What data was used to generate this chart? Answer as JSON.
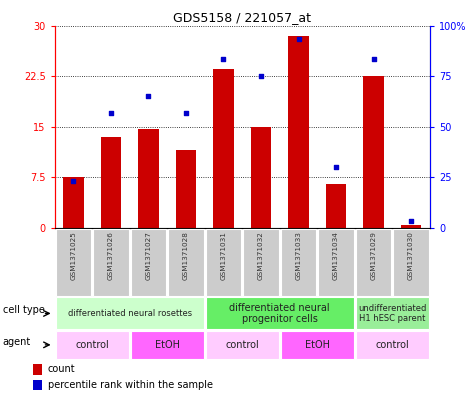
{
  "title": "GDS5158 / 221057_at",
  "samples": [
    "GSM1371025",
    "GSM1371026",
    "GSM1371027",
    "GSM1371028",
    "GSM1371031",
    "GSM1371032",
    "GSM1371033",
    "GSM1371034",
    "GSM1371029",
    "GSM1371030"
  ],
  "counts": [
    7.5,
    13.5,
    14.7,
    11.5,
    23.5,
    15.0,
    28.5,
    6.5,
    22.5,
    0.5
  ],
  "percentile_ranks": [
    7.0,
    17.0,
    19.5,
    17.0,
    25.0,
    22.5,
    28.0,
    9.0,
    25.0,
    1.0
  ],
  "bar_color": "#cc0000",
  "dot_color": "#0000cc",
  "ylim_left": [
    0,
    30
  ],
  "ylim_right": [
    0,
    100
  ],
  "yticks_left": [
    0,
    7.5,
    15,
    22.5,
    30
  ],
  "ytick_labels_left": [
    "0",
    "7.5",
    "15",
    "22.5",
    "30"
  ],
  "yticks_right": [
    0,
    25,
    50,
    75,
    100
  ],
  "ytick_labels_right": [
    "0",
    "25",
    "50",
    "75",
    "100%"
  ],
  "cell_type_groups": [
    {
      "label": "differentiated neural rosettes",
      "start": 0,
      "end": 4,
      "color": "#ccffcc",
      "fontsize": 6
    },
    {
      "label": "differentiated neural\nprogenitor cells",
      "start": 4,
      "end": 8,
      "color": "#66ee66",
      "fontsize": 7
    },
    {
      "label": "undifferentiated\nH1 hESC parent",
      "start": 8,
      "end": 10,
      "color": "#99ee99",
      "fontsize": 6
    }
  ],
  "agent_groups": [
    {
      "label": "control",
      "start": 0,
      "end": 2,
      "color": "#ffccff"
    },
    {
      "label": "EtOH",
      "start": 2,
      "end": 4,
      "color": "#ff66ff"
    },
    {
      "label": "control",
      "start": 4,
      "end": 6,
      "color": "#ffccff"
    },
    {
      "label": "EtOH",
      "start": 6,
      "end": 8,
      "color": "#ff66ff"
    },
    {
      "label": "control",
      "start": 8,
      "end": 10,
      "color": "#ffccff"
    }
  ],
  "cell_type_row_label": "cell type",
  "agent_row_label": "agent",
  "legend_count_label": "count",
  "legend_percentile_label": "percentile rank within the sample",
  "sample_bg_color": "#cccccc",
  "sample_text_color": "#333333",
  "bar_width": 0.55
}
